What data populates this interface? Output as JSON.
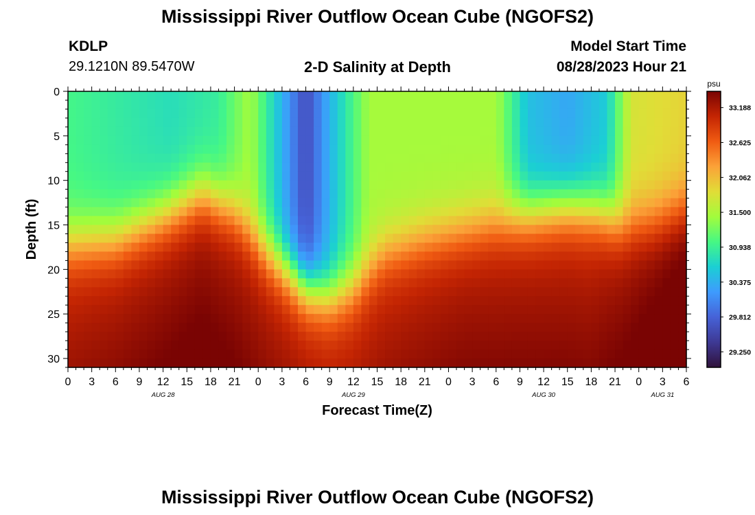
{
  "header": {
    "title": "Mississippi River Outflow Ocean Cube (NGOFS2)",
    "station": "KDLP",
    "coords": "29.1210N  89.5470W",
    "subtitle": "2-D Salinity at Depth",
    "model_label": "Model Start Time",
    "model_time": "08/28/2023 Hour 21"
  },
  "footer": {
    "title": "Mississippi River Outflow Ocean Cube (NGOFS2)"
  },
  "chart_data": {
    "type": "heatmap",
    "title": "2-D Salinity at Depth",
    "xlabel": "Forecast Time(Z)",
    "ylabel": "Depth (ft)",
    "x_range_hours": [
      0,
      78
    ],
    "y_range_ft": [
      0,
      31
    ],
    "x_ticks": [
      "0",
      "3",
      "6",
      "9",
      "12",
      "15",
      "18",
      "21",
      "0",
      "3",
      "6",
      "9",
      "12",
      "15",
      "18",
      "21",
      "0",
      "3",
      "6",
      "9",
      "12",
      "15",
      "18",
      "21",
      "0",
      "3",
      "6"
    ],
    "y_ticks": [
      "0",
      "5",
      "10",
      "15",
      "20",
      "25",
      "30"
    ],
    "date_labels": [
      {
        "label": "AUG 28",
        "hour": 12
      },
      {
        "label": "AUG 29",
        "hour": 36
      },
      {
        "label": "AUG 30",
        "hour": 60
      },
      {
        "label": "AUG 31",
        "hour": 75
      }
    ],
    "colorbar": {
      "unit": "psu",
      "min": 29.0,
      "max": 33.45,
      "tick_values": [
        33.188,
        32.625,
        32.062,
        31.5,
        30.938,
        30.375,
        29.812,
        29.25
      ],
      "tick_labels": [
        "33.188",
        "32.625",
        "32.062",
        "31.500",
        "30.938",
        "30.375",
        "29.812",
        "29.250"
      ],
      "colors": [
        "#30123b",
        "#3e3994",
        "#4662d7",
        "#3e9bfe",
        "#1bcfd4",
        "#46f884",
        "#a2fc3c",
        "#e1dd37",
        "#fba238",
        "#f05b12",
        "#c42503",
        "#7a0403"
      ]
    },
    "halocline_depth_ft": [
      {
        "hour": 0,
        "depth": 17
      },
      {
        "hour": 6,
        "depth": 16.5
      },
      {
        "hour": 12,
        "depth": 14
      },
      {
        "hour": 17,
        "depth": 11.5
      },
      {
        "hour": 21,
        "depth": 13.5
      },
      {
        "hour": 25,
        "depth": 18
      },
      {
        "hour": 30,
        "depth": 22
      },
      {
        "hour": 33,
        "depth": 23
      },
      {
        "hour": 36,
        "depth": 22
      },
      {
        "hour": 40,
        "depth": 18
      },
      {
        "hour": 45,
        "depth": 16.5
      },
      {
        "hour": 50,
        "depth": 15.5
      },
      {
        "hour": 57,
        "depth": 14
      },
      {
        "hour": 63,
        "depth": 13
      },
      {
        "hour": 67,
        "depth": 13.5
      },
      {
        "hour": 70,
        "depth": 15
      },
      {
        "hour": 74,
        "depth": 14.5
      },
      {
        "hour": 78,
        "depth": 13
      }
    ],
    "surface_layer_psu": [
      {
        "hour": 0,
        "value": 31.0
      },
      {
        "hour": 13,
        "value": 30.75
      },
      {
        "hour": 19,
        "value": 30.9
      },
      {
        "hour": 23,
        "value": 31.45
      },
      {
        "hour": 27,
        "value": 30.4
      },
      {
        "hour": 30,
        "value": 29.6
      },
      {
        "hour": 33,
        "value": 30.4
      },
      {
        "hour": 38,
        "value": 31.45
      },
      {
        "hour": 54,
        "value": 31.45
      },
      {
        "hour": 58,
        "value": 30.5
      },
      {
        "hour": 63,
        "value": 30.3
      },
      {
        "hour": 68,
        "value": 30.6
      },
      {
        "hour": 71,
        "value": 31.75
      },
      {
        "hour": 78,
        "value": 31.9
      }
    ],
    "deep_layer_psu": [
      {
        "hour": 0,
        "value": 32.95
      },
      {
        "hour": 17,
        "value": 33.15
      },
      {
        "hour": 33,
        "value": 32.9
      },
      {
        "hour": 50,
        "value": 33.05
      },
      {
        "hour": 66,
        "value": 33.0
      },
      {
        "hour": 78,
        "value": 33.4
      }
    ]
  }
}
